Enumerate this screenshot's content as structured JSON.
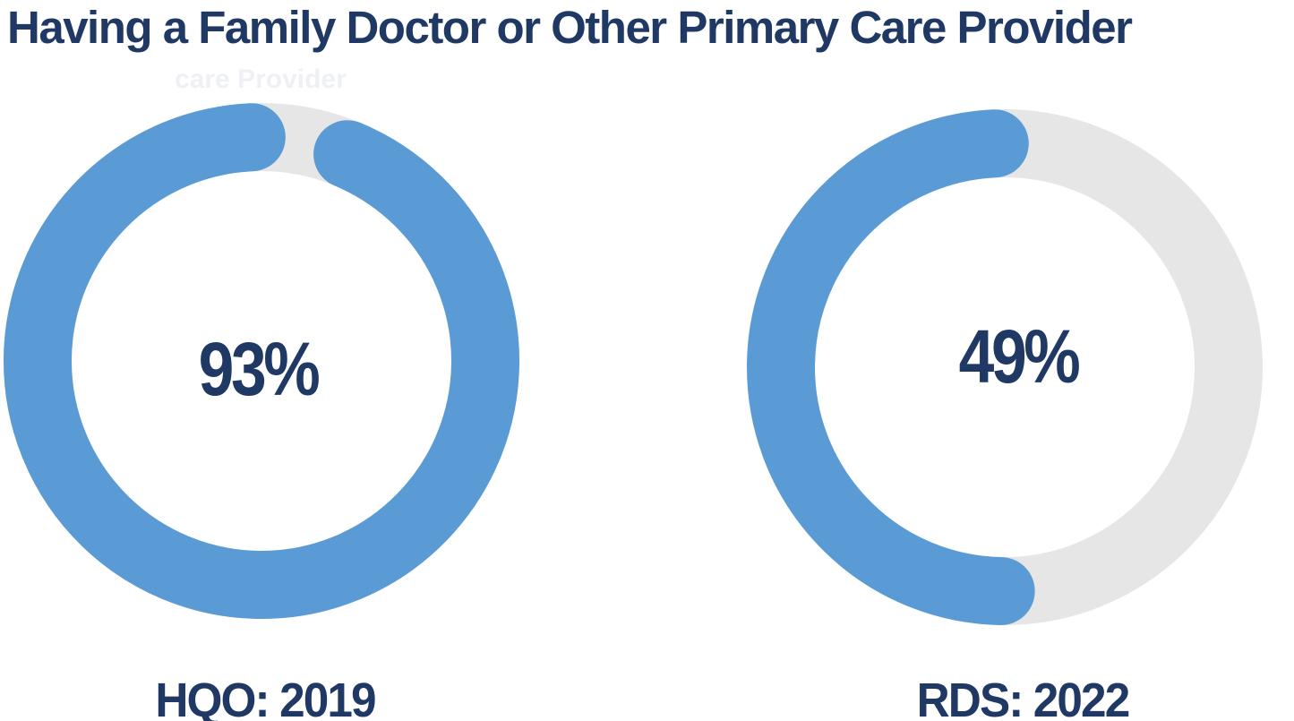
{
  "page": {
    "title": "Having a Family Doctor or Other Primary Care Provider",
    "ghost_text": "care Provider"
  },
  "colors": {
    "navy_text": "#1F3864",
    "accent_blue": "#5B9BD5",
    "track_gray": "#E7E6E6",
    "background": "#FFFFFF"
  },
  "chart_data": [
    {
      "type": "pie",
      "subtype": "donut",
      "label": "HQO: 2019",
      "center_label": "93%",
      "slices": [
        {
          "name": "value",
          "value": 93,
          "color": "#5B9BD5"
        },
        {
          "name": "remainder",
          "value": 7,
          "color": "#E7E6E6"
        }
      ],
      "arc": {
        "value_pct": 93,
        "rotate_deg": -67.4,
        "rounded_caps": true,
        "gap_position": "top, slightly right of 12 o'clock"
      }
    },
    {
      "type": "pie",
      "subtype": "donut",
      "label": "RDS: 2022",
      "center_label": "49%",
      "slices": [
        {
          "name": "value",
          "value": 49,
          "color": "#5B9BD5"
        },
        {
          "name": "remainder",
          "value": 51,
          "color": "#E7E6E6"
        }
      ],
      "arc": {
        "value_pct": 49,
        "rotate_deg": 91,
        "rounded_caps": true,
        "gap_position": "right half gray; blue covers left half from 6 o'clock up to 12 o'clock"
      }
    }
  ]
}
